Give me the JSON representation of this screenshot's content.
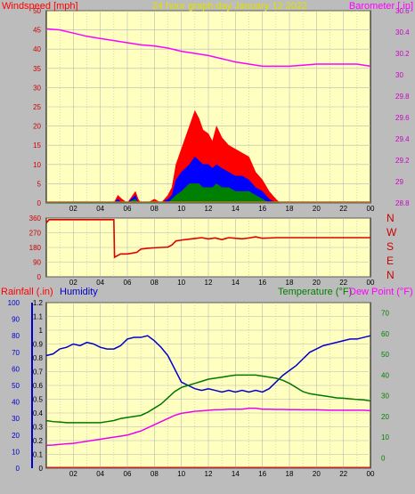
{
  "header": {
    "wind_label": "Windspeed [mph]",
    "title": "24 hour graph day   January 12 2022",
    "baro_label": "Barometer [.in]"
  },
  "compass": {
    "n": "N",
    "w": "W",
    "s": "S",
    "e": "E",
    "n2": "N"
  },
  "lower": {
    "rain_label": "Rainfall (.in)",
    "hum_label": "Humidity",
    "temp_label": "Temperature (°F)",
    "dew_label": "Dew Point (°F)"
  },
  "colors": {
    "plot_bg": "#ffffc0",
    "frame_bg": "#bcbcbc",
    "grid": "#b8b8b8",
    "wind_gust": "#ff0000",
    "wind_avg": "#0000ff",
    "wind_low": "#008000",
    "barometer": "#ff00ff",
    "direction": "#e00000",
    "humidity": "#0000cc",
    "temperature": "#007700",
    "dewpoint": "#ee00ee",
    "rain_axis": "#0000cc",
    "temp_axis": "#008000"
  },
  "chart_data": [
    {
      "type": "area",
      "title": "24 hour graph day   January 12 2022",
      "x_ticks": [
        "02",
        "04",
        "06",
        "08",
        "10",
        "12",
        "14",
        "16",
        "18",
        "20",
        "22",
        "00"
      ],
      "ylim": [
        0,
        50
      ],
      "y_ticks": [
        0,
        5,
        10,
        15,
        20,
        25,
        30,
        35,
        40,
        45,
        50
      ],
      "y2lim": [
        28.8,
        30.6
      ],
      "y2_ticks": [
        "28.8",
        "29",
        "29.2",
        "29.4",
        "29.6",
        "29.8",
        "30",
        "30.2",
        "30.4",
        "30.6"
      ],
      "series": [
        {
          "name": "Windspeed [mph]",
          "x": [
            0,
            4,
            5,
            5.3,
            5.6,
            6,
            6.6,
            6.8,
            7,
            7.5,
            8,
            8.5,
            9,
            9.3,
            9.6,
            10,
            10.3,
            10.6,
            11,
            11.3,
            11.6,
            12,
            12.3,
            12.6,
            13,
            13.5,
            14,
            14.5,
            15,
            15.5,
            16,
            16.5,
            17,
            17.3
          ],
          "gust": [
            0,
            0,
            0,
            2,
            1,
            0,
            3,
            1,
            0,
            0,
            1,
            0,
            2,
            4,
            10,
            14,
            17,
            20,
            24,
            22,
            19,
            18,
            16,
            20,
            17,
            15,
            14,
            13,
            12,
            8,
            6,
            3,
            1,
            0
          ],
          "avg": [
            0,
            0,
            0,
            1,
            0,
            0,
            2,
            0,
            0,
            0,
            0,
            0,
            1,
            2,
            6,
            8,
            9,
            10,
            12,
            11,
            10,
            10,
            9,
            10,
            9,
            8,
            7,
            7,
            6,
            4,
            3,
            1,
            0,
            0
          ],
          "low": [
            0,
            0,
            0,
            0,
            0,
            0,
            1,
            0,
            0,
            0,
            0,
            0,
            0,
            1,
            2,
            3,
            4,
            5,
            5,
            5,
            4,
            4,
            4,
            5,
            4,
            4,
            3,
            3,
            3,
            2,
            1,
            0,
            0,
            0
          ]
        },
        {
          "name": "Barometer [.in]",
          "x": [
            0,
            1,
            2,
            3,
            4,
            5,
            6,
            7,
            8,
            9,
            10,
            11,
            12,
            13,
            14,
            15,
            16,
            17,
            18,
            19,
            20,
            21,
            22,
            23,
            24
          ],
          "values": [
            30.43,
            30.42,
            30.39,
            30.36,
            30.34,
            30.32,
            30.3,
            30.28,
            30.27,
            30.25,
            30.22,
            30.2,
            30.18,
            30.15,
            30.12,
            30.1,
            30.08,
            30.08,
            30.08,
            30.09,
            30.1,
            30.1,
            30.1,
            30.1,
            30.08
          ]
        }
      ]
    },
    {
      "type": "line",
      "x_ticks": [
        "02",
        "04",
        "06",
        "08",
        "10",
        "12",
        "14",
        "16",
        "18",
        "20",
        "22",
        "00"
      ],
      "ylim": [
        0,
        360
      ],
      "y_ticks": [
        0,
        90,
        180,
        270,
        360
      ],
      "series": [
        {
          "name": "Wind direction",
          "x": [
            0,
            0.2,
            5,
            5.05,
            5.5,
            6,
            6.7,
            7,
            7.5,
            8,
            8.5,
            9,
            9.3,
            9.6,
            10,
            10.5,
            11,
            11.5,
            12,
            12.5,
            13,
            13.5,
            14,
            14.5,
            15,
            15.5,
            16,
            16.5,
            17,
            20,
            24
          ],
          "values": [
            330,
            350,
            350,
            120,
            140,
            140,
            150,
            170,
            175,
            178,
            180,
            182,
            195,
            220,
            225,
            230,
            235,
            240,
            232,
            238,
            228,
            240,
            236,
            233,
            238,
            245,
            236,
            238,
            240,
            240,
            240
          ]
        }
      ]
    },
    {
      "type": "line",
      "x_ticks": [
        "02",
        "04",
        "06",
        "08",
        "10",
        "12",
        "14",
        "16",
        "18",
        "20",
        "22",
        "00"
      ],
      "ylim": [
        0,
        1.2
      ],
      "y_ticks": [
        "0",
        "0.1",
        "0.2",
        "0.3",
        "0.4",
        "0.5",
        "0.6",
        "0.7",
        "0.8",
        "0.9",
        "1",
        "1.1",
        "1.2"
      ],
      "y_humidity_ticks": [
        0,
        10,
        20,
        30,
        40,
        50,
        60,
        70,
        80,
        90,
        100
      ],
      "y2lim": [
        -5,
        75
      ],
      "y2_ticks": [
        0,
        10,
        20,
        30,
        40,
        50,
        60,
        70
      ],
      "series": [
        {
          "name": "Humidity",
          "x": [
            0,
            0.5,
            1,
            1.5,
            2,
            2.5,
            3,
            3.5,
            4,
            4.5,
            5,
            5.5,
            6,
            6.5,
            7,
            7.5,
            8,
            8.5,
            9,
            9.5,
            10,
            10.5,
            11,
            11.5,
            12,
            12.5,
            13,
            13.5,
            14,
            14.5,
            15,
            15.5,
            16,
            16.5,
            17,
            17.5,
            18,
            18.5,
            19,
            19.5,
            20,
            20.5,
            21,
            21.5,
            22,
            22.5,
            23,
            23.5,
            24
          ],
          "values": [
            68,
            69,
            72,
            73,
            75,
            74,
            76,
            75,
            73,
            72,
            72,
            74,
            78,
            79,
            79,
            80,
            77,
            73,
            68,
            60,
            52,
            50,
            48,
            47,
            48,
            47,
            46,
            47,
            46,
            47,
            46,
            47,
            46,
            48,
            52,
            56,
            59,
            62,
            66,
            70,
            72,
            74,
            75,
            76,
            77,
            78,
            78,
            79,
            80
          ]
        },
        {
          "name": "Temperature (°F)",
          "x": [
            0,
            0.5,
            1,
            1.5,
            2,
            2.5,
            3,
            3.5,
            4,
            4.5,
            5,
            5.5,
            6,
            6.5,
            7,
            7.5,
            8,
            8.5,
            9,
            9.5,
            10,
            10.5,
            11,
            11.5,
            12,
            12.5,
            13,
            13.5,
            14,
            14.5,
            15,
            15.5,
            16,
            16.5,
            17,
            17.5,
            18,
            18.5,
            19,
            19.5,
            20,
            20.5,
            21,
            21.5,
            22,
            22.5,
            23,
            23.5,
            24
          ],
          "values": [
            18,
            17.5,
            17.3,
            17,
            17,
            17,
            17,
            17,
            17,
            17.5,
            18,
            19,
            19.5,
            20,
            20.5,
            22,
            24,
            26,
            29,
            32,
            34,
            35,
            36,
            37,
            38,
            38.5,
            39,
            39.5,
            40,
            40,
            40,
            40,
            39.5,
            39,
            38.5,
            37.5,
            36,
            34,
            32,
            31,
            30.5,
            30,
            29.5,
            29,
            28.8,
            28.5,
            28.2,
            28,
            27.5
          ]
        },
        {
          "name": "Dew Point (°F)",
          "x": [
            0,
            0.5,
            1,
            1.5,
            2,
            2.5,
            3,
            3.5,
            4,
            4.5,
            5,
            5.5,
            6,
            6.5,
            7,
            7.5,
            8,
            8.5,
            9,
            9.5,
            10,
            10.5,
            11,
            11.5,
            12,
            12.5,
            13,
            13.5,
            14,
            14.5,
            15,
            15.5,
            16,
            16.5,
            17,
            17.5,
            18,
            18.5,
            19,
            19.5,
            20,
            20.5,
            21,
            21.5,
            22,
            22.5,
            23,
            23.5,
            24
          ],
          "values": [
            6,
            6.2,
            6.5,
            6.8,
            7,
            7.5,
            8,
            8.5,
            9,
            9.5,
            10,
            10.5,
            11,
            12,
            13,
            14.5,
            16,
            17.5,
            19,
            20.5,
            21.5,
            22,
            22.5,
            22.7,
            23,
            23.2,
            23.3,
            23.5,
            23.5,
            23.5,
            24,
            24,
            23.5,
            23.5,
            23.4,
            23.4,
            23.3,
            23.3,
            23.2,
            23.2,
            23.2,
            23.1,
            23,
            23,
            23,
            23,
            23,
            23,
            22.8
          ]
        },
        {
          "name": "Rainfall (.in)",
          "x": [
            0,
            24
          ],
          "values": [
            0,
            0
          ]
        }
      ]
    }
  ]
}
